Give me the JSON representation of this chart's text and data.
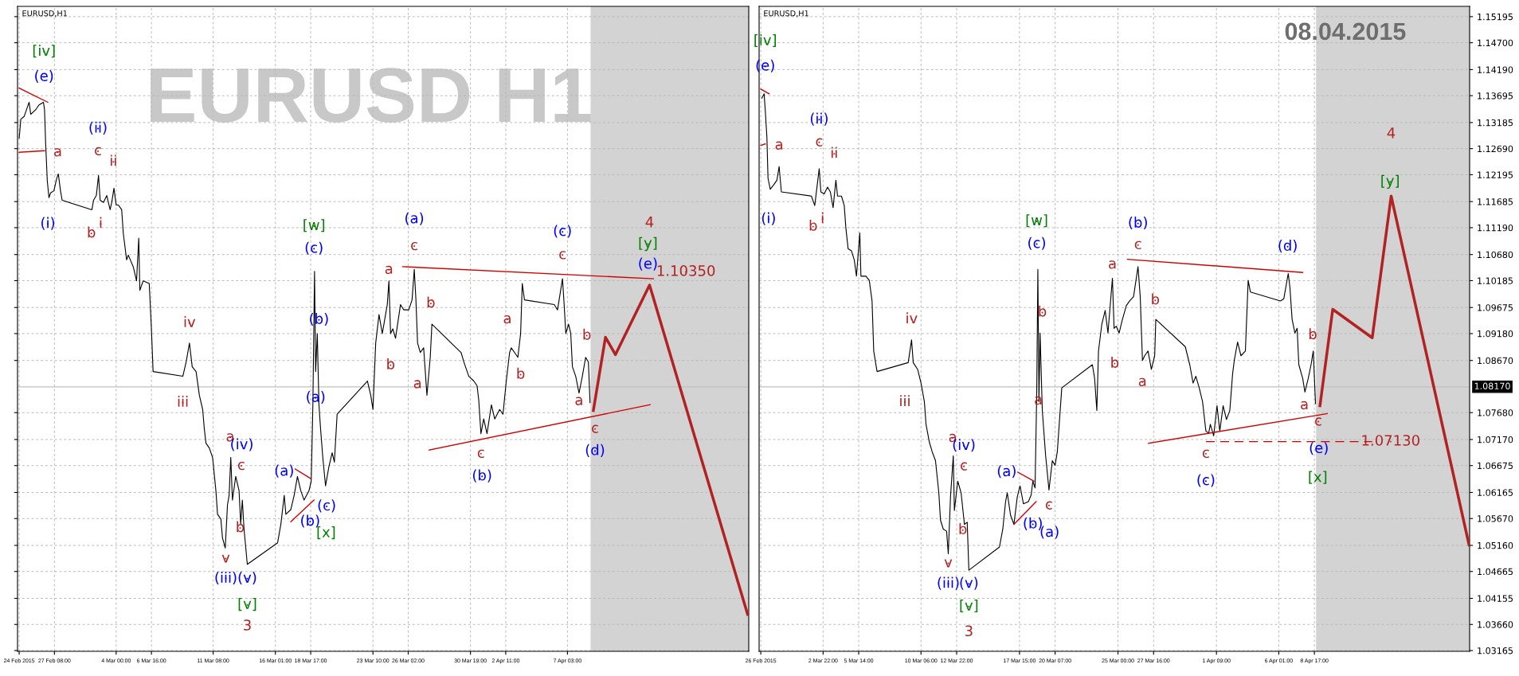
{
  "chart_data": [
    {
      "type": "line",
      "title": "EURUSD,H1",
      "xlim": [
        "2015-02-24T13:00",
        "2015-04-20T20:00"
      ],
      "ylim": [
        1.0315,
        1.1539
      ],
      "tick_labels": "x",
      "grid": true,
      "xticks": [
        {
          "value": "2015-02-24T16:00",
          "label": "24 Feb 2015"
        },
        {
          "value": "2015-02-27T08:00",
          "label": "27 Feb 08:00"
        },
        {
          "value": "2015-03-04T00:00",
          "label": "4 Mar 00:00"
        },
        {
          "value": "2015-03-06T16:00",
          "label": "6 Mar 16:00"
        },
        {
          "value": "2015-03-11T08:00",
          "label": "11 Mar 08:00"
        },
        {
          "value": "2015-03-16T01:00",
          "label": "16 Mar 01:00"
        },
        {
          "value": "2015-03-18T17:00",
          "label": "18 Mar 17:00"
        },
        {
          "value": "2015-03-23T10:00",
          "label": "23 Mar 10:00"
        },
        {
          "value": "2015-03-26T02:00",
          "label": "26 Mar 02:00"
        },
        {
          "value": "2015-03-30T19:00",
          "label": "30 Mar 19:00"
        },
        {
          "value": "2015-04-02T11:00",
          "label": "2 Apr 11:00"
        },
        {
          "value": "2015-04-07T03:00",
          "label": "7 Apr 03:00"
        }
      ],
      "yticks": [
        1.15195,
        1.147,
        1.1419,
        1.13695,
        1.13185,
        1.1269,
        1.12195,
        1.11685,
        1.1119,
        1.1068,
        1.10185,
        1.09675,
        1.0918,
        1.0867,
        1.0768,
        1.0717,
        1.06675,
        1.06165,
        1.0567,
        1.0516,
        1.04665,
        1.04155,
        1.0366,
        1.03165
      ],
      "series": [
        {
          "color": "#000000",
          "x": [
            "2015-02-24T16:00",
            "2015-02-24T19:00",
            "2015-02-25T01:00",
            "2015-02-25T10:00",
            "2015-02-25T13:00",
            "2015-02-25T22:00",
            "2015-02-26T04:00",
            "2015-02-26T12:00",
            "2015-02-26T14:00",
            "2015-02-26T16:00",
            "2015-02-26T19:00",
            "2015-02-26T22:00",
            "2015-02-27T01:00",
            "2015-02-27T07:00",
            "2015-02-27T12:00",
            "2015-02-27T15:00",
            "2015-02-27T19:00",
            "2015-02-27T22:00",
            "2015-03-02T04:00",
            "2015-03-02T07:00",
            "2015-03-02T12:00",
            "2015-03-02T16:00",
            "2015-03-02T19:00",
            "2015-03-03T01:00",
            "2015-03-03T07:00",
            "2015-03-03T13:00",
            "2015-03-03T16:00",
            "2015-03-03T20:00",
            "2015-03-04T00:00",
            "2015-03-04T04:00",
            "2015-03-04T10:00",
            "2015-03-04T13:00",
            "2015-03-04T19:00",
            "2015-03-04T22:00",
            "2015-03-05T07:00",
            "2015-03-05T13:00",
            "2015-03-05T17:00",
            "2015-03-05T19:00",
            "2015-03-06T01:00",
            "2015-03-06T12:00",
            "2015-03-06T16:00",
            "2015-03-06T19:00",
            "2015-03-09T01:00",
            "2015-03-09T07:00",
            "2015-03-09T13:00",
            "2015-03-09T18:00",
            "2015-03-10T01:00",
            "2015-03-10T07:00",
            "2015-03-10T13:00",
            "2015-03-10T16:00",
            "2015-03-10T19:00",
            "2015-03-11T01:00",
            "2015-03-11T07:00",
            "2015-03-11T13:00",
            "2015-03-11T16:00",
            "2015-03-11T22:00",
            "2015-03-12T01:00",
            "2015-03-12T06:00",
            "2015-03-12T10:00",
            "2015-03-12T13:00",
            "2015-03-12T16:00",
            "2015-03-12T19:00",
            "2015-03-13T01:00",
            "2015-03-13T07:00",
            "2015-03-13T10:00",
            "2015-03-13T13:00",
            "2015-03-13T16:00",
            "2015-03-13T22:00",
            "2015-03-16T05:00",
            "2015-03-16T11:00",
            "2015-03-16T17:00",
            "2015-03-16T20:00",
            "2015-03-17T05:00",
            "2015-03-17T11:00",
            "2015-03-17T17:00",
            "2015-03-17T23:00",
            "2015-03-18T05:00",
            "2015-03-18T14:00",
            "2015-03-18T18:00",
            "2015-03-18T21:00",
            "2015-03-19T00:00",
            "2015-03-19T02:00",
            "2015-03-19T05:00",
            "2015-03-19T08:00",
            "2015-03-19T11:00",
            "2015-03-19T15:00",
            "2015-03-19T20:00",
            "2015-03-20T02:00",
            "2015-03-20T08:00",
            "2015-03-20T12:00",
            "2015-03-20T17:00",
            "2015-03-23T00:00",
            "2015-03-23T06:00",
            "2015-03-23T10:00",
            "2015-03-23T15:00",
            "2015-03-23T21:00",
            "2015-03-24T03:00",
            "2015-03-24T12:00",
            "2015-03-24T15:00",
            "2015-03-24T18:00",
            "2015-03-24T22:00",
            "2015-03-25T03:00",
            "2015-03-25T12:00",
            "2015-03-25T18:00",
            "2015-03-26T03:00",
            "2015-03-26T09:00",
            "2015-03-26T13:00",
            "2015-03-26T16:00",
            "2015-03-26T19:00",
            "2015-03-27T00:00",
            "2015-03-27T06:00",
            "2015-03-27T12:00",
            "2015-03-27T18:00",
            "2015-03-27T21:00",
            "2015-03-30T02:00",
            "2015-03-30T07:00",
            "2015-03-30T16:00",
            "2015-03-31T01:00",
            "2015-03-31T07:00",
            "2015-03-31T10:00",
            "2015-03-31T14:00",
            "2015-03-31T19:00",
            "2015-04-01T01:00",
            "2015-04-01T09:00",
            "2015-04-01T15:00",
            "2015-04-02T00:00",
            "2015-04-02T06:00",
            "2015-04-02T12:00",
            "2015-04-02T18:00",
            "2015-04-02T21:00",
            "2015-04-03T03:00",
            "2015-04-03T09:00",
            "2015-04-03T14:00",
            "2015-04-03T17:00",
            "2015-04-03T21:00",
            "2015-04-06T03:00",
            "2015-04-06T09:00",
            "2015-04-06T18:00",
            "2015-04-06T21:00",
            "2015-04-07T00:00",
            "2015-04-07T05:00",
            "2015-04-07T09:00",
            "2015-04-07T12:00",
            "2015-04-07T18:00",
            "2015-04-08T00:00",
            "2015-04-08T06:00",
            "2015-04-08T12:00",
            "2015-04-08T17:00",
            "2015-04-08T20:00"
          ],
          "values": [
            1.1289,
            1.1325,
            1.133,
            1.1357,
            1.1334,
            1.1343,
            1.1352,
            1.1357,
            1.1343,
            1.128,
            1.1208,
            1.1176,
            1.1185,
            1.1189,
            1.1212,
            1.1221,
            1.1189,
            1.1171,
            1.1153,
            1.1171,
            1.118,
            1.1218,
            1.1171,
            1.1167,
            1.118,
            1.1153,
            1.1167,
            1.1194,
            1.1162,
            1.1162,
            1.1153,
            1.1108,
            1.1058,
            1.1067,
            1.1045,
            1.1018,
            1.1099,
            1.1,
            1.1018,
            1.1013,
            1.0927,
            1.0846,
            1.0837,
            1.0864,
            1.09,
            1.0855,
            1.0846,
            1.0801,
            1.0774,
            1.0737,
            1.071,
            1.0701,
            1.0683,
            1.062,
            1.0575,
            1.0566,
            1.053,
            1.0511,
            1.0593,
            1.0611,
            1.0683,
            1.0602,
            1.0647,
            1.062,
            1.0557,
            1.0602,
            1.0548,
            1.048,
            1.0521,
            1.0557,
            1.0611,
            1.0575,
            1.0584,
            1.0611,
            1.0647,
            1.062,
            1.0602,
            1.062,
            1.0638,
            1.0783,
            1.1036,
            1.0846,
            1.0918,
            1.0783,
            1.0737,
            1.0683,
            1.0629,
            1.0665,
            1.0692,
            1.0674,
            1.0765,
            1.0828,
            1.0801,
            1.0774,
            1.09,
            1.0954,
            1.0918,
            1.0973,
            1.1018,
            1.0918,
            1.0927,
            1.0909,
            1.0973,
            1.0963,
            1.0963,
            1.0982,
            1.104,
            1.0982,
            1.09,
            1.0882,
            1.0891,
            1.0801,
            1.0873,
            1.0936,
            1.0882,
            1.0864,
            1.0837,
            1.0828,
            1.0819,
            1.0792,
            1.0728,
            1.0756,
            1.0728,
            1.0783,
            1.0756,
            1.0774,
            1.0765,
            1.0828,
            1.0882,
            1.0891,
            1.0882,
            1.0873,
            1.0918,
            1.1013,
            1.0982,
            1.0973,
            1.0963,
            1.1022,
            1.0973,
            1.0918,
            1.0936,
            1.0918,
            1.0855,
            1.0837,
            1.0805,
            1.0837,
            1.0873,
            1.0864,
            1.0787
          ]
        },
        {
          "color": "#b22222",
          "x": [
            "2015-04-09T02:00",
            "2015-04-10T00:00",
            "2015-04-10T18:00",
            "2015-04-13T08:00",
            "2015-04-20T18:00"
          ],
          "values": [
            1.0772,
            1.0911,
            1.0878,
            1.101,
            1.0385
          ]
        },
        {
          "color": "#d00000",
          "x": [
            "2015-02-24T16:00",
            "2015-02-26T20:00"
          ],
          "values": [
            1.1384,
            1.1357
          ]
        },
        {
          "color": "#d00000",
          "x": [
            "2015-02-24T16:00",
            "2015-02-26T14:00"
          ],
          "values": [
            1.1262,
            1.1265
          ]
        },
        {
          "color": "#d00000",
          "x": [
            "2015-03-17T13:00",
            "2015-03-18T17:00"
          ],
          "values": [
            1.0661,
            1.0643
          ]
        },
        {
          "color": "#d00000",
          "x": [
            "2015-03-17T05:00",
            "2015-03-18T23:00"
          ],
          "values": [
            1.0561,
            1.0602
          ]
        },
        {
          "color": "#d00000",
          "x": [
            "2015-03-25T16:00",
            "2015-04-13T15:00"
          ],
          "values": [
            1.1045,
            1.1022
          ]
        },
        {
          "color": "#d00000",
          "x": [
            "2015-03-27T16:00",
            "2015-04-13T09:00"
          ],
          "values": [
            1.0697,
            1.0783
          ]
        },
        {
          "type": "scatter",
          "marker": "circle",
          "color": "#b22222",
          "x": [
            "2015-02-27T14:00",
            "2015-03-02T15:00",
            "2015-03-03T19:00",
            "2015-03-02T03:00",
            "2015-03-02T20:00",
            "2015-03-09T13:00",
            "2015-03-09T01:00",
            "2015-03-26T13:00",
            "2015-03-24T15:00",
            "2015-03-27T19:00",
            "2015-03-24T18:00",
            "2015-03-26T19:00",
            "2015-03-31T14:00",
            "2015-04-06T18:00",
            "2015-04-02T14:00",
            "2015-04-03T14:00",
            "2015-04-08T14:00",
            "2015-04-08T00:00",
            "2015-04-09T05:00",
            "2015-04-16T02:00",
            "2015-03-12T15:00",
            "2015-03-13T11:00",
            "2015-03-13T09:00",
            "2015-03-12T07:00"
          ],
          "values": [
            1.1262,
            1.1264,
            1.1244,
            1.1108,
            1.1126,
            1.0938,
            1.0787,
            1.1084,
            1.1039,
            1.0975,
            1.0858,
            1.0822,
            1.069,
            1.1067,
            1.0945,
            1.084,
            1.0914,
            1.079,
            1.0737,
            1.1035,
            1.0721,
            1.0667,
            1.0549,
            1.0491
          ],
          "value_labels": [
            "a",
            "c",
            "ii",
            "b",
            "i",
            "iv",
            "iii",
            "c",
            "a",
            "b",
            "b",
            "a",
            "c",
            "c",
            "a",
            "b",
            "b",
            "a",
            "c",
            "1.10350",
            "a",
            "c",
            "b",
            "v"
          ]
        },
        {
          "type": "scatter",
          "marker": "circle",
          "color": "#0000ff",
          "x": [
            "2015-02-26T13:00",
            "2015-03-02T15:00",
            "2015-02-26T20:00",
            "2015-03-18T23:00",
            "2015-03-19T08:00",
            "2015-03-19T02:00",
            "2015-03-26T13:00",
            "2015-03-31T16:00",
            "2015-04-06T18:00",
            "2015-04-09T05:00",
            "2015-04-13T05:00",
            "2015-03-13T12:00",
            "2015-03-16T17:00",
            "2015-03-18T16:00",
            "2015-03-19T22:00",
            "2015-03-12T07:00",
            "2015-03-13T22:00"
          ],
          "values": [
            1.1405,
            1.1307,
            1.1126,
            1.1079,
            1.0944,
            1.0796,
            1.1135,
            1.0647,
            1.1111,
            1.0695,
            1.1049,
            1.0706,
            1.0656,
            1.0561,
            1.059,
            1.0453,
            1.0453
          ],
          "value_labels": [
            "(e)",
            "(ii)",
            "(i)",
            "(c)",
            "(b)",
            "(a)",
            "(a)",
            "(b)",
            "(c)",
            "(d)",
            "(e)",
            "(iv)",
            "(a)",
            "(b)",
            "(c)",
            "(iii)",
            "(v)"
          ]
        },
        {
          "type": "scatter",
          "marker": "circle",
          "color": "#008000",
          "x": [
            "2015-02-26T13:00",
            "2015-03-18T23:00",
            "2015-04-13T05:00",
            "2015-03-19T21:00",
            "2015-03-13T22:00"
          ],
          "values": [
            1.1453,
            1.1122,
            1.1088,
            1.0539,
            1.0403
          ],
          "value_labels": [
            "[iv]",
            "[w]",
            "[y]",
            "[x]",
            "[v]"
          ]
        }
      ],
      "ref_lines": [
        {
          "axis": "y",
          "value": 1.0817,
          "label": null,
          "color": "#c0c0c0"
        }
      ],
      "bands": [
        {
          "axis": "x",
          "from": "2015-04-08T21:00",
          "to": "2015-04-20T20:00",
          "label": null,
          "color": "#d3d3d3"
        }
      ],
      "annotations": [
        "EURUSD H1",
        "4",
        "3"
      ]
    },
    {
      "type": "line",
      "title": "EURUSD,H1",
      "xlim": [
        "2015-02-26T03:00",
        "2015-04-20T08:00"
      ],
      "ylim": [
        1.0315,
        1.1539
      ],
      "grid": true,
      "xticks": [
        {
          "value": "2015-02-26T06:00",
          "label": "26 Feb 2015"
        },
        {
          "value": "2015-03-02T22:00",
          "label": "2 Mar 22:00"
        },
        {
          "value": "2015-03-05T14:00",
          "label": "5 Mar 14:00"
        },
        {
          "value": "2015-03-10T06:00",
          "label": "10 Mar 06:00"
        },
        {
          "value": "2015-03-12T22:00",
          "label": "12 Mar 22:00"
        },
        {
          "value": "2015-03-17T15:00",
          "label": "17 Mar 15:00"
        },
        {
          "value": "2015-03-20T07:00",
          "label": "20 Mar 07:00"
        },
        {
          "value": "2015-03-25T00:00",
          "label": "25 Mar 00:00"
        },
        {
          "value": "2015-03-27T16:00",
          "label": "27 Mar 16:00"
        },
        {
          "value": "2015-04-01T09:00",
          "label": "1 Apr 09:00"
        },
        {
          "value": "2015-04-06T01:00",
          "label": "6 Apr 01:00"
        },
        {
          "value": "2015-04-08T17:00",
          "label": "8 Apr 17:00"
        }
      ],
      "yticks": [
        {
          "value": 1.15195,
          "label": "1.15195"
        },
        {
          "value": 1.147,
          "label": "1.14700"
        },
        {
          "value": 1.1419,
          "label": "1.14190"
        },
        {
          "value": 1.13695,
          "label": "1.13695"
        },
        {
          "value": 1.13185,
          "label": "1.13185"
        },
        {
          "value": 1.1269,
          "label": "1.12690"
        },
        {
          "value": 1.12195,
          "label": "1.12195"
        },
        {
          "value": 1.11685,
          "label": "1.11685"
        },
        {
          "value": 1.1119,
          "label": "1.11190"
        },
        {
          "value": 1.1068,
          "label": "1.10680"
        },
        {
          "value": 1.10185,
          "label": "1.10185"
        },
        {
          "value": 1.09675,
          "label": "1.09675"
        },
        {
          "value": 1.0918,
          "label": "1.09180"
        },
        {
          "value": 1.0867,
          "label": "1.08670"
        },
        {
          "value": 1.0768,
          "label": "1.07680"
        },
        {
          "value": 1.0717,
          "label": "1.07170"
        },
        {
          "value": 1.06675,
          "label": "1.06675"
        },
        {
          "value": 1.06165,
          "label": "1.06165"
        },
        {
          "value": 1.0567,
          "label": "1.05670"
        },
        {
          "value": 1.0516,
          "label": "1.05160"
        },
        {
          "value": 1.04665,
          "label": "1.04665"
        },
        {
          "value": 1.04155,
          "label": "1.04155"
        },
        {
          "value": 1.0366,
          "label": "1.03660"
        },
        {
          "value": 1.03165,
          "label": "1.03165"
        }
      ],
      "series": [
        {
          "color": "#000000",
          "x": [
            "2015-02-26T08:00",
            "2015-02-26T12:00",
            "2015-02-26T14:00",
            "2015-02-26T17:00",
            "2015-02-26T19:00",
            "2015-02-26T23:00",
            "2015-02-27T05:00",
            "2015-02-27T11:00",
            "2015-02-27T15:00",
            "2015-02-27T19:00",
            "2015-03-02T01:00",
            "2015-03-02T07:00",
            "2015-03-02T10:00",
            "2015-03-02T15:00",
            "2015-03-02T18:00",
            "2015-03-03T00:00",
            "2015-03-03T06:00",
            "2015-03-03T11:00",
            "2015-03-03T16:00",
            "2015-03-03T21:00",
            "2015-03-04T00:00",
            "2015-03-04T07:00",
            "2015-03-04T12:00",
            "2015-03-04T15:00",
            "2015-03-04T19:00",
            "2015-03-05T01:00",
            "2015-03-05T06:00",
            "2015-03-05T10:00",
            "2015-03-05T16:00",
            "2015-03-05T18:00",
            "2015-03-06T03:00",
            "2015-03-06T09:00",
            "2015-03-06T14:00",
            "2015-03-06T17:00",
            "2015-03-06T23:00",
            "2015-03-09T07:00",
            "2015-03-09T13:00",
            "2015-03-09T16:00",
            "2015-03-10T00:00",
            "2015-03-10T06:00",
            "2015-03-10T12:00",
            "2015-03-10T15:00",
            "2015-03-10T21:00",
            "2015-03-11T02:00",
            "2015-03-11T08:00",
            "2015-03-11T14:00",
            "2015-03-11T17:00",
            "2015-03-11T22:00",
            "2015-03-12T04:00",
            "2015-03-12T07:00",
            "2015-03-12T11:00",
            "2015-03-12T16:00",
            "2015-03-12T18:00",
            "2015-03-13T00:00",
            "2015-03-13T06:00",
            "2015-03-13T12:00",
            "2015-03-13T17:00",
            "2015-03-13T20:00",
            "2015-03-16T03:00",
            "2015-03-16T09:00",
            "2015-03-16T14:00",
            "2015-03-16T17:00",
            "2015-03-16T23:00",
            "2015-03-17T05:00",
            "2015-03-17T11:00",
            "2015-03-17T16:00",
            "2015-03-17T22:00",
            "2015-03-18T07:00",
            "2015-03-18T12:00",
            "2015-03-18T15:00",
            "2015-03-18T19:00",
            "2015-03-18T22:00",
            "2015-03-19T00:00",
            "2015-03-19T02:00",
            "2015-03-19T04:00",
            "2015-03-19T08:00",
            "2015-03-19T14:00",
            "2015-03-19T20:00",
            "2015-03-20T02:00",
            "2015-03-20T07:00",
            "2015-03-20T11:00",
            "2015-03-20T15:00",
            "2015-03-20T19:00",
            "2015-03-23T02:00",
            "2015-03-23T06:00",
            "2015-03-23T10:00",
            "2015-03-23T13:00",
            "2015-03-23T19:00",
            "2015-03-24T01:00",
            "2015-03-24T06:00",
            "2015-03-24T14:00",
            "2015-03-24T17:00",
            "2015-03-24T21:00",
            "2015-03-25T02:00",
            "2015-03-25T08:00",
            "2015-03-25T15:00",
            "2015-03-25T21:00",
            "2015-03-26T04:00",
            "2015-03-26T12:00",
            "2015-03-26T16:00",
            "2015-03-26T20:00",
            "2015-03-27T00:00",
            "2015-03-27T06:00",
            "2015-03-27T12:00",
            "2015-03-27T18:00",
            "2015-03-27T20:00",
            "2015-03-30T01:00",
            "2015-03-30T09:00",
            "2015-03-30T15:00",
            "2015-03-30T20:00",
            "2015-03-31T02:00",
            "2015-03-31T08:00",
            "2015-03-31T14:00",
            "2015-03-31T19:00",
            "2015-03-31T22:00",
            "2015-04-01T04:00",
            "2015-04-01T10:00",
            "2015-04-01T15:00",
            "2015-04-01T21:00",
            "2015-04-02T03:00",
            "2015-04-02T09:00",
            "2015-04-02T14:00",
            "2015-04-02T17:00",
            "2015-04-02T23:00",
            "2015-04-03T05:00",
            "2015-04-03T13:00",
            "2015-04-03T18:00",
            "2015-04-03T22:00",
            "2015-04-06T04:00",
            "2015-04-06T10:00",
            "2015-04-06T18:00",
            "2015-04-06T21:00",
            "2015-04-07T01:00",
            "2015-04-07T06:00",
            "2015-04-07T10:00",
            "2015-04-07T13:00",
            "2015-04-07T20:00",
            "2015-04-08T00:00",
            "2015-04-08T06:00",
            "2015-04-08T11:00",
            "2015-04-08T15:00",
            "2015-04-08T19:00"
          ],
          "values": [
            1.1365,
            1.1373,
            1.1343,
            1.1291,
            1.1213,
            1.1192,
            1.12,
            1.1209,
            1.1235,
            1.1187,
            1.1179,
            1.1161,
            1.1187,
            1.1231,
            1.1187,
            1.1183,
            1.1196,
            1.1187,
            1.1157,
            1.1209,
            1.1179,
            1.1179,
            1.1161,
            1.1118,
            1.1079,
            1.1075,
            1.1058,
            1.1027,
            1.1109,
            1.1027,
            1.1027,
            1.1019,
            1.098,
            1.0885,
            1.0846,
            1.0863,
            1.0906,
            1.0863,
            1.085,
            1.0824,
            1.0789,
            1.0746,
            1.0712,
            1.0694,
            1.0677,
            1.0616,
            1.0564,
            1.0547,
            1.0543,
            1.05,
            1.0608,
            1.0686,
            1.0582,
            1.0638,
            1.0616,
            1.0556,
            1.056,
            1.0469,
            1.0513,
            1.0547,
            1.0599,
            1.0616,
            1.0573,
            1.0556,
            1.0608,
            1.0629,
            1.0595,
            1.0599,
            1.0612,
            1.0638,
            1.0625,
            1.0807,
            1.104,
            1.0789,
            1.0919,
            1.0772,
            1.0686,
            1.0621,
            1.0677,
            1.0668,
            1.0694,
            1.0755,
            1.0815,
            1.0859,
            1.0833,
            1.0772,
            1.0885,
            1.0936,
            1.0962,
            1.0919,
            1.1023,
            1.0928,
            1.0932,
            1.0919,
            1.0945,
            1.0971,
            1.098,
            1.0988,
            1.1045,
            1.0988,
            1.0867,
            1.0876,
            1.0885,
            1.085,
            1.0876,
            1.0945,
            1.0893,
            1.0859,
            1.0824,
            1.0837,
            1.0815,
            1.0789,
            1.0733,
            1.0729,
            1.0746,
            1.0724,
            1.0781,
            1.0733,
            1.0781,
            1.0755,
            1.0772,
            1.0841,
            1.0867,
            1.0902,
            1.0876,
            1.0885,
            1.1019,
            1.0997,
            1.098,
            1.0984,
            1.1032,
            1.1006,
            1.0945,
            1.0919,
            1.0928,
            1.0859,
            1.0833,
            1.0807,
            1.0833,
            1.0859,
            1.0885,
            1.0785
          ]
        },
        {
          "color": "#b22222",
          "x": [
            "2015-04-09T03:00",
            "2015-04-10T02:00",
            "2015-04-13T01:00",
            "2015-04-14T11:00",
            "2015-04-20T07:00"
          ],
          "values": [
            1.0781,
            1.0964,
            1.091,
            1.1179,
            1.0517
          ]
        },
        {
          "color": "#d00000",
          "x": [
            "2015-02-26T06:00",
            "2015-02-26T21:00"
          ],
          "values": [
            1.1382,
            1.1373
          ]
        },
        {
          "color": "#d00000",
          "x": [
            "2015-02-26T06:00",
            "2015-02-26T14:00"
          ],
          "values": [
            1.1275,
            1.1278
          ]
        },
        {
          "color": "#d00000",
          "x": [
            "2015-03-17T12:00",
            "2015-03-18T17:00"
          ],
          "values": [
            1.0655,
            1.0638
          ]
        },
        {
          "color": "#d00000",
          "x": [
            "2015-03-17T05:00",
            "2015-03-18T21:00"
          ],
          "values": [
            1.0556,
            1.0599
          ]
        },
        {
          "color": "#d00000",
          "x": [
            "2015-03-25T17:00",
            "2015-04-07T20:00"
          ],
          "values": [
            1.1059,
            1.1034
          ]
        },
        {
          "color": "#d00000",
          "x": [
            "2015-03-27T07:00",
            "2015-04-09T16:00"
          ],
          "values": [
            1.071,
            1.0766
          ]
        },
        {
          "color": "#d00000",
          "line_style": "dashed",
          "x": [
            "2015-03-31T14:00",
            "2015-04-13T01:00"
          ],
          "values": [
            1.0713,
            1.0713
          ]
        },
        {
          "type": "scatter",
          "marker": "circle",
          "color": "#b22222",
          "x": [
            "2015-02-27T15:00",
            "2015-03-02T15:00",
            "2015-03-03T18:00",
            "2015-03-02T04:00",
            "2015-03-02T21:00",
            "2015-03-09T13:00",
            "2015-03-09T01:00",
            "2015-03-19T08:00",
            "2015-03-19T01:00",
            "2015-03-26T12:00",
            "2015-03-24T14:00",
            "2015-03-27T19:00",
            "2015-03-24T18:00",
            "2015-03-26T20:00",
            "2015-03-31T14:00",
            "2015-04-08T14:00",
            "2015-04-07T23:00",
            "2015-04-09T00:00",
            "2015-04-14T10:00",
            "2015-03-12T15:00",
            "2015-03-13T11:00",
            "2015-03-13T09:00",
            "2015-03-19T20:00",
            "2015-03-12T07:00"
          ],
          "values": [
            1.1275,
            1.1281,
            1.1259,
            1.1121,
            1.1135,
            1.0945,
            1.0788,
            1.0958,
            1.0791,
            1.1086,
            1.1049,
            1.0981,
            1.0861,
            1.0826,
            1.069,
            1.0915,
            1.0782,
            1.0751,
            1.0713,
            1.072,
            1.0666,
            1.0545,
            1.0592,
            1.0482
          ],
          "value_labels": [
            "a",
            "c",
            "ii",
            "b",
            "i",
            "iv",
            "iii",
            "b",
            "a",
            "c",
            "a",
            "b",
            "b",
            "a",
            "c",
            "b",
            "a",
            "c",
            "1.07130",
            "a",
            "c",
            "b",
            "c",
            "v"
          ]
        },
        {
          "type": "scatter",
          "marker": "circle",
          "color": "#0000ff",
          "x": [
            "2015-02-26T14:00",
            "2015-03-02T15:00",
            "2015-02-26T20:00",
            "2015-03-18T22:00",
            "2015-03-26T12:00",
            "2015-03-31T14:00",
            "2015-04-06T17:00",
            "2015-04-09T01:00",
            "2015-03-13T11:00",
            "2015-03-16T16:00",
            "2015-03-18T15:00",
            "2015-03-19T21:00",
            "2015-03-12T07:00",
            "2015-03-13T20:00"
          ],
          "values": [
            1.1425,
            1.1324,
            1.1135,
            1.1088,
            1.1127,
            1.0638,
            1.1083,
            1.0699,
            1.0705,
            1.0655,
            1.0556,
            1.054,
            1.0443,
            1.0443
          ],
          "value_labels": [
            "(e)",
            "(ii)",
            "(i)",
            "(c)",
            "(b)",
            "(c)",
            "(d)",
            "(e)",
            "(iv)",
            "(a)",
            "(b)",
            "(a)",
            "(iii)",
            "(v)"
          ]
        },
        {
          "type": "scatter",
          "marker": "circle",
          "color": "#008000",
          "x": [
            "2015-02-26T14:00",
            "2015-03-18T22:00",
            "2015-04-08T23:00",
            "2015-04-14T09:00",
            "2015-03-13T20:00"
          ],
          "values": [
            1.1473,
            1.1131,
            1.0644,
            1.1206,
            1.04
          ],
          "value_labels": [
            "[iv]",
            "[w]",
            "[x]",
            "[y]",
            "[v]"
          ]
        }
      ],
      "ref_lines": [
        {
          "axis": "y",
          "value": 1.0817,
          "label": "1.08170",
          "color": "#c0c0c0"
        }
      ],
      "bands": [
        {
          "axis": "x",
          "from": "2015-04-08T20:00",
          "to": "2015-04-20T08:00",
          "label": null,
          "color": "#d3d3d3"
        }
      ],
      "annotations": [
        "08.04.2015",
        "4",
        "3"
      ]
    }
  ]
}
